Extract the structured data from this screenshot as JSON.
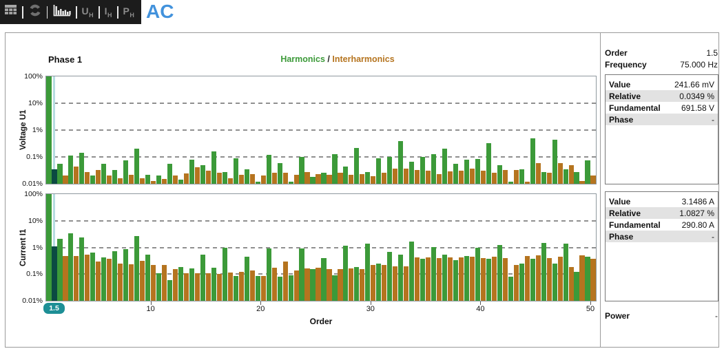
{
  "toolbar": {
    "icons": [
      "table-icon",
      "refresh-icon",
      "harmonics-icon"
    ],
    "buttons": [
      {
        "label": "U",
        "sub": "H"
      },
      {
        "label": "I",
        "sub": "H"
      },
      {
        "label": "P",
        "sub": "H"
      }
    ],
    "title": "AC"
  },
  "header": {
    "phase_label": "Phase 1",
    "legend": {
      "harmonics": "Harmonics",
      "separator": " / ",
      "interharmonics": "Interharmonics"
    }
  },
  "colors": {
    "harmonic": "#3c9a39",
    "interharmonic": "#b5741f",
    "selected_bar": "#0b4a42",
    "selection_line": "#b7dde2",
    "badge": "#1d8f96",
    "accent_blue": "#4292dc"
  },
  "xaxis": {
    "ticks": [
      10,
      20,
      30,
      40,
      50
    ],
    "label": "Order",
    "badge": "1.5"
  },
  "chart_data": [
    {
      "type": "bar",
      "title": "Voltage U1",
      "ylabel": "Voltage U1",
      "xlabel": "Order",
      "yscale": "log",
      "ylim": [
        0.01,
        100
      ],
      "ytick_labels": [
        "100%",
        "10%",
        "1%",
        "0.1%",
        "0.01%"
      ],
      "grid": true,
      "legend_position": "top",
      "selected_order": 1.5,
      "series": [
        {
          "name": "Harmonics",
          "x_start": 1,
          "x_step": 1,
          "values": [
            100,
            0.055,
            0.11,
            0.14,
            0.02,
            0.055,
            0.032,
            0.075,
            0.2,
            0.022,
            0.02,
            0.055,
            0.014,
            0.08,
            0.05,
            0.16,
            0.028,
            0.09,
            0.035,
            0.012,
            0.12,
            0.06,
            0.012,
            0.1,
            0.018,
            0.025,
            0.13,
            0.045,
            0.22,
            0.028,
            0.09,
            0.1,
            0.4,
            0.065,
            0.1,
            0.13,
            0.2,
            0.055,
            0.08,
            0.085,
            0.32,
            0.05,
            0.012,
            0.035,
            0.5,
            0.028,
            0.45,
            0.035,
            0.028,
            0.075
          ]
        },
        {
          "name": "Interharmonics",
          "x_start": 1.5,
          "x_step": 1,
          "values": [
            0.0349,
            0.02,
            0.045,
            0.028,
            0.032,
            0.02,
            0.016,
            0.022,
            0.016,
            0.013,
            0.015,
            0.02,
            0.024,
            0.042,
            0.03,
            0.026,
            0.016,
            0.021,
            0.023,
            0.02,
            0.026,
            0.026,
            0.021,
            0.027,
            0.023,
            0.021,
            0.026,
            0.021,
            0.023,
            0.019,
            0.026,
            0.036,
            0.036,
            0.032,
            0.031,
            0.023,
            0.029,
            0.031,
            0.036,
            0.031,
            0.026,
            0.032,
            0.032,
            0.012,
            0.06,
            0.026,
            0.06,
            0.05,
            0.013,
            0.02
          ]
        }
      ]
    },
    {
      "type": "bar",
      "title": "Current I1",
      "ylabel": "Current I1",
      "xlabel": "Order",
      "yscale": "log",
      "ylim": [
        0.01,
        100
      ],
      "ytick_labels": [
        "100%",
        "10%",
        "1%",
        "0.1%",
        "0.01%"
      ],
      "grid": true,
      "legend_position": "top",
      "selected_order": 1.5,
      "series": [
        {
          "name": "Harmonics",
          "x_start": 1,
          "x_step": 1,
          "values": [
            100,
            2.1,
            3.3,
            2.4,
            0.65,
            0.42,
            0.72,
            0.85,
            2.7,
            0.55,
            0.105,
            0.06,
            0.18,
            0.16,
            0.55,
            0.17,
            0.95,
            0.085,
            0.45,
            0.085,
            0.9,
            0.08,
            0.09,
            0.9,
            0.15,
            0.4,
            0.09,
            1.15,
            0.18,
            1.4,
            0.25,
            0.7,
            0.55,
            1.7,
            0.38,
            1.05,
            0.55,
            0.33,
            0.47,
            0.95,
            0.37,
            1.2,
            0.08,
            0.25,
            0.37,
            1.5,
            0.25,
            1.35,
            0.12,
            0.45
          ]
        },
        {
          "name": "Interharmonics",
          "x_start": 1.5,
          "x_step": 1,
          "values": [
            1.0827,
            0.47,
            0.48,
            0.53,
            0.3,
            0.38,
            0.25,
            0.24,
            0.32,
            0.22,
            0.22,
            0.15,
            0.11,
            0.11,
            0.105,
            0.1,
            0.115,
            0.12,
            0.135,
            0.085,
            0.17,
            0.3,
            0.14,
            0.16,
            0.17,
            0.155,
            0.15,
            0.165,
            0.155,
            0.22,
            0.22,
            0.2,
            0.2,
            0.42,
            0.43,
            0.4,
            0.43,
            0.43,
            0.44,
            0.4,
            0.45,
            0.4,
            0.22,
            0.48,
            0.52,
            0.4,
            0.44,
            0.18,
            0.5,
            0.38
          ]
        }
      ]
    }
  ],
  "side_panel": {
    "order_label": "Order",
    "order_value": "1.5",
    "frequency_label": "Frequency",
    "frequency_value": "75.000 Hz",
    "boxes": [
      {
        "rows": [
          {
            "label": "Value",
            "value": "241.66 mV",
            "shaded": false
          },
          {
            "label": "Relative",
            "value": "0.0349 %",
            "shaded": true
          },
          {
            "label": "Fundamental",
            "value": "691.58 V",
            "shaded": false
          },
          {
            "label": "Phase",
            "value": "-",
            "shaded": true
          }
        ]
      },
      {
        "rows": [
          {
            "label": "Value",
            "value": "3.1486 A",
            "shaded": false
          },
          {
            "label": "Relative",
            "value": "1.0827 %",
            "shaded": true
          },
          {
            "label": "Fundamental",
            "value": "290.80 A",
            "shaded": false
          },
          {
            "label": "Phase",
            "value": "-",
            "shaded": true
          }
        ]
      }
    ],
    "power_label": "Power",
    "power_value": "-"
  }
}
